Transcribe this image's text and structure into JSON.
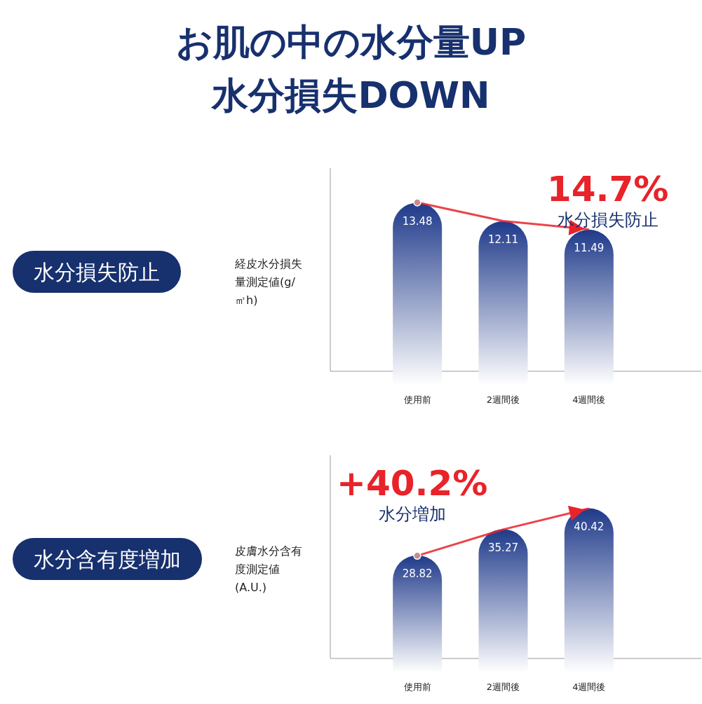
{
  "chart_data": [
    {
      "type": "bar",
      "ylabel": "経皮水分損失量測定値(g/㎡h)",
      "categories": [
        "使用前",
        "2週間後",
        "4週間後"
      ],
      "values": [
        13.48,
        12.11,
        11.49
      ],
      "color": "#1f3a8a",
      "data_labels": true,
      "annotations": [
        "お肌の中の水分量UP",
        "水分損失DOWN",
        "水分損失防止",
        "14.7%",
        "水分損失防止"
      ]
    },
    {
      "type": "bar",
      "ylabel": "皮膚水分含有度測定値(A.U.)",
      "categories": [
        "使用前",
        "2週間後",
        "4週間後"
      ],
      "values": [
        28.82,
        35.27,
        40.42
      ],
      "color": "#1f3a8a",
      "data_labels": true,
      "annotations": [
        "水分含有度増加",
        "+40.2%",
        "水分増加"
      ]
    }
  ]
}
